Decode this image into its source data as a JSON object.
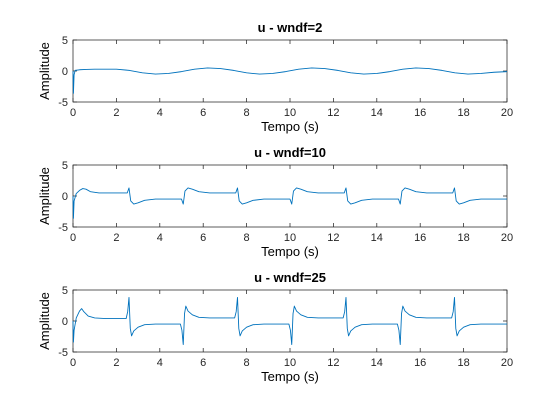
{
  "chart_data": [
    {
      "type": "line",
      "title": "u - wndf=2",
      "xlabel": "Tempo (s)",
      "ylabel": "Amplitude",
      "xlim": [
        0,
        20
      ],
      "ylim": [
        -5,
        5
      ],
      "xticks": [
        "0",
        "2",
        "4",
        "6",
        "8",
        "10",
        "12",
        "14",
        "16",
        "18",
        "20"
      ],
      "yticks": [
        "5",
        "0",
        "-5"
      ],
      "grid": false,
      "color": "#0072bd",
      "series": [
        {
          "x": [
            0,
            0.02,
            0.05,
            0.1,
            0.3,
            0.6,
            1.0,
            1.5,
            2.0,
            2.6,
            3.2,
            3.8,
            4.4,
            5.0,
            5.6,
            6.2,
            6.8,
            7.4,
            8.0,
            8.6,
            9.2,
            9.8,
            10.4,
            11.0,
            11.6,
            12.2,
            12.8,
            13.4,
            14.0,
            14.6,
            15.2,
            15.8,
            16.4,
            17.0,
            17.6,
            18.2,
            18.8,
            19.4,
            20.0
          ],
          "y": [
            0,
            -3.6,
            -0.6,
            0.1,
            0.2,
            0.25,
            0.3,
            0.3,
            0.3,
            0.1,
            -0.3,
            -0.5,
            -0.4,
            -0.1,
            0.3,
            0.5,
            0.4,
            0.1,
            -0.3,
            -0.5,
            -0.4,
            -0.1,
            0.3,
            0.5,
            0.4,
            0.1,
            -0.3,
            -0.5,
            -0.4,
            -0.1,
            0.3,
            0.5,
            0.4,
            0.1,
            -0.3,
            -0.5,
            -0.4,
            -0.2,
            -0.1
          ]
        }
      ]
    },
    {
      "type": "line",
      "title": "u - wndf=10",
      "xlabel": "Tempo (s)",
      "ylabel": "Amplitude",
      "xlim": [
        0,
        20
      ],
      "ylim": [
        -5,
        5
      ],
      "xticks": [
        "0",
        "2",
        "4",
        "6",
        "8",
        "10",
        "12",
        "14",
        "16",
        "18",
        "20"
      ],
      "yticks": [
        "5",
        "0",
        "-5"
      ],
      "grid": false,
      "color": "#0072bd",
      "series": [
        {
          "x": [
            0,
            0.02,
            0.05,
            0.15,
            0.3,
            0.45,
            0.6,
            0.8,
            1.2,
            2.0,
            2.5,
            2.58,
            2.66,
            2.8,
            3.0,
            3.3,
            3.8,
            4.4,
            5.0,
            5.08,
            5.16,
            5.3,
            5.5,
            5.8,
            6.3,
            7.0,
            7.5,
            7.58,
            7.66,
            7.8,
            8.0,
            8.3,
            8.8,
            9.4,
            10.0,
            10.08,
            10.16,
            10.3,
            10.5,
            10.8,
            11.3,
            12.0,
            12.5,
            12.58,
            12.66,
            12.8,
            13.0,
            13.3,
            13.8,
            14.4,
            15.0,
            15.08,
            15.16,
            15.3,
            15.5,
            15.8,
            16.3,
            17.0,
            17.5,
            17.58,
            17.66,
            17.8,
            18.0,
            18.3,
            18.8,
            19.4,
            20.0
          ],
          "y": [
            0,
            -3.6,
            -0.8,
            0.4,
            0.9,
            1.2,
            1.1,
            0.7,
            0.5,
            0.5,
            0.5,
            1.3,
            -0.8,
            -1.3,
            -1.1,
            -0.7,
            -0.5,
            -0.5,
            -0.5,
            -1.3,
            0.8,
            1.3,
            1.1,
            0.7,
            0.5,
            0.5,
            0.5,
            1.3,
            -0.8,
            -1.3,
            -1.1,
            -0.7,
            -0.5,
            -0.5,
            -0.5,
            -1.3,
            0.8,
            1.3,
            1.1,
            0.7,
            0.5,
            0.5,
            0.5,
            1.3,
            -0.8,
            -1.3,
            -1.1,
            -0.7,
            -0.5,
            -0.5,
            -0.5,
            -1.3,
            0.8,
            1.3,
            1.1,
            0.7,
            0.5,
            0.5,
            0.5,
            1.3,
            -0.8,
            -1.3,
            -1.1,
            -0.7,
            -0.5,
            -0.5,
            -0.5
          ]
        }
      ]
    },
    {
      "type": "line",
      "title": "u - wndf=25",
      "xlabel": "Tempo (s)",
      "ylabel": "Amplitude",
      "xlim": [
        0,
        20
      ],
      "ylim": [
        -5,
        5
      ],
      "xticks": [
        "0",
        "2",
        "4",
        "6",
        "8",
        "10",
        "12",
        "14",
        "16",
        "18",
        "20"
      ],
      "yticks": [
        "5",
        "0",
        "-5"
      ],
      "grid": false,
      "color": "#0072bd",
      "series": [
        {
          "x": [
            0,
            0.02,
            0.05,
            0.15,
            0.3,
            0.4,
            0.5,
            0.7,
            1.0,
            1.5,
            2.0,
            2.45,
            2.52,
            2.58,
            2.64,
            2.7,
            2.8,
            3.0,
            3.3,
            3.8,
            4.5,
            4.95,
            5.02,
            5.08,
            5.14,
            5.2,
            5.3,
            5.5,
            5.8,
            6.3,
            7.0,
            7.45,
            7.52,
            7.58,
            7.64,
            7.7,
            7.8,
            8.0,
            8.3,
            8.8,
            9.5,
            9.95,
            10.02,
            10.08,
            10.14,
            10.2,
            10.3,
            10.5,
            10.8,
            11.3,
            12.0,
            12.45,
            12.52,
            12.58,
            12.64,
            12.7,
            12.8,
            13.0,
            13.3,
            13.8,
            14.5,
            14.95,
            15.02,
            15.08,
            15.14,
            15.2,
            15.3,
            15.5,
            15.8,
            16.3,
            17.0,
            17.45,
            17.52,
            17.58,
            17.64,
            17.7,
            17.8,
            18.0,
            18.3,
            18.8,
            19.4,
            20.0
          ],
          "y": [
            0,
            -3.4,
            -1.5,
            0.5,
            1.6,
            2.0,
            1.5,
            0.8,
            0.5,
            0.4,
            0.4,
            0.4,
            1.5,
            3.8,
            -1.2,
            -2.4,
            -1.6,
            -1.0,
            -0.6,
            -0.5,
            -0.5,
            -0.5,
            -1.5,
            -3.8,
            1.2,
            2.4,
            1.6,
            1.0,
            0.6,
            0.5,
            0.5,
            0.5,
            1.5,
            3.8,
            -1.2,
            -2.4,
            -1.6,
            -1.0,
            -0.6,
            -0.5,
            -0.5,
            -0.5,
            -1.5,
            -3.8,
            1.2,
            2.4,
            1.6,
            1.0,
            0.6,
            0.5,
            0.5,
            0.5,
            1.5,
            3.8,
            -1.2,
            -2.4,
            -1.6,
            -1.0,
            -0.6,
            -0.5,
            -0.5,
            -0.5,
            -1.5,
            -3.8,
            1.2,
            2.4,
            1.6,
            1.0,
            0.6,
            0.5,
            0.5,
            0.5,
            1.5,
            3.8,
            -1.2,
            -2.4,
            -1.6,
            -1.0,
            -0.6,
            -0.5,
            -0.5,
            -0.5
          ]
        }
      ]
    }
  ]
}
